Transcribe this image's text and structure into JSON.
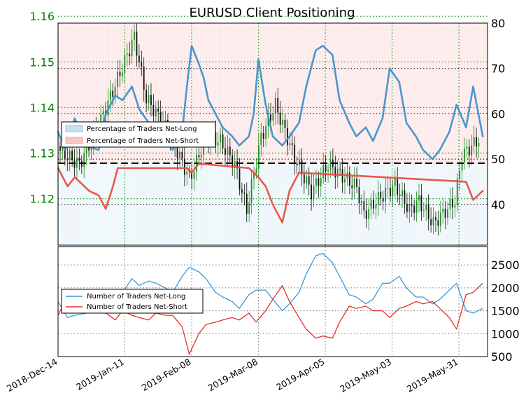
{
  "chart_data": [
    {
      "type": "line",
      "title": "EURUSD Client Positioning",
      "price_axis": {
        "ticks": [
          1.12,
          1.13,
          1.14,
          1.15,
          1.16
        ],
        "range": [
          1.1098,
          1.1585
        ]
      },
      "pct_axis": {
        "ticks": [
          40,
          50,
          60,
          70,
          80
        ],
        "range": [
          31,
          80
        ]
      },
      "reference_line": 50,
      "grid": "dotted",
      "legend": {
        "placement": "left",
        "entries": [
          "Percentage of Traders Net-Long",
          "Percentage of Traders Net-Short"
        ]
      },
      "series": [
        {
          "name": "Percentage of Traders Net-Long",
          "color": "#3a8fc8",
          "x": [
            "2018-12-14",
            "2018-12-17",
            "2018-12-21",
            "2018-12-26",
            "2018-12-31",
            "2019-01-03",
            "2019-01-07",
            "2019-01-10",
            "2019-01-14",
            "2019-01-17",
            "2019-01-21",
            "2019-01-24",
            "2019-01-28",
            "2019-01-31",
            "2019-02-04",
            "2019-02-06",
            "2019-02-08",
            "2019-02-11",
            "2019-02-13",
            "2019-02-15",
            "2019-02-18",
            "2019-02-21",
            "2019-02-25",
            "2019-02-28",
            "2019-03-04",
            "2019-03-06",
            "2019-03-08",
            "2019-03-11",
            "2019-03-14",
            "2019-03-18",
            "2019-03-21",
            "2019-03-25",
            "2019-03-28",
            "2019-04-01",
            "2019-04-04",
            "2019-04-08",
            "2019-04-11",
            "2019-04-15",
            "2019-04-18",
            "2019-04-22",
            "2019-04-25",
            "2019-04-29",
            "2019-05-02",
            "2019-05-06",
            "2019-05-09",
            "2019-05-13",
            "2019-05-16",
            "2019-05-20",
            "2019-05-23",
            "2019-05-27",
            "2019-05-30",
            "2019-06-03",
            "2019-06-06",
            "2019-06-10"
          ],
          "values": [
            56,
            52,
            59,
            53,
            52,
            60,
            64,
            63,
            66,
            61,
            58,
            57,
            54,
            52,
            56,
            66,
            75,
            71,
            68,
            63,
            60,
            57,
            55,
            53,
            55,
            60,
            72,
            62,
            55,
            53,
            55,
            58,
            66,
            74,
            75,
            73,
            63,
            58,
            55,
            57,
            54,
            59,
            70,
            67,
            58,
            55,
            52,
            50,
            52,
            56,
            62,
            57,
            66,
            55
          ]
        },
        {
          "name": "Percentage of Traders Net-Short",
          "color": "#e74c3c",
          "x": [
            "2018-12-14",
            "2018-12-18",
            "2018-12-21",
            "2018-12-27",
            "2018-12-31",
            "2019-01-03",
            "2019-01-06",
            "2019-01-08",
            "2019-02-06",
            "2019-02-08",
            "2019-02-11",
            "2019-03-04",
            "2019-03-08",
            "2019-03-11",
            "2019-03-14",
            "2019-03-18",
            "2019-03-21",
            "2019-03-25",
            "2019-06-03",
            "2019-06-06",
            "2019-06-10"
          ],
          "values": [
            48,
            44,
            46,
            43,
            42,
            39,
            44,
            48,
            48,
            47,
            49,
            48,
            46,
            44,
            40,
            36,
            43,
            47,
            45,
            41,
            43
          ]
        }
      ]
    },
    {
      "type": "line",
      "count_axis": {
        "ticks": [
          500,
          1000,
          1500,
          2000,
          2500
        ],
        "range": [
          500,
          2900
        ]
      },
      "x_ticks": [
        "2018-Dec-14",
        "2019-Jan-11",
        "2019-Feb-08",
        "2019-Mar-08",
        "2019-Apr-05",
        "2019-May-03",
        "2019-May-31"
      ],
      "grid": "dotted",
      "legend": {
        "placement": "left",
        "entries": [
          "Number of Traders Net-Long",
          "Number of Traders Net-Short"
        ]
      },
      "series": [
        {
          "name": "Number of Traders Net-Long",
          "color": "#3a9ad9",
          "x": [
            "2018-12-14",
            "2018-12-18",
            "2018-12-21",
            "2018-12-26",
            "2018-12-31",
            "2019-01-03",
            "2019-01-07",
            "2019-01-10",
            "2019-01-14",
            "2019-01-17",
            "2019-01-21",
            "2019-01-24",
            "2019-01-28",
            "2019-01-31",
            "2019-02-04",
            "2019-02-07",
            "2019-02-11",
            "2019-02-14",
            "2019-02-18",
            "2019-02-21",
            "2019-02-25",
            "2019-02-28",
            "2019-03-04",
            "2019-03-07",
            "2019-03-11",
            "2019-03-14",
            "2019-03-18",
            "2019-03-21",
            "2019-03-25",
            "2019-03-28",
            "2019-04-01",
            "2019-04-04",
            "2019-04-08",
            "2019-04-11",
            "2019-04-15",
            "2019-04-18",
            "2019-04-22",
            "2019-04-25",
            "2019-04-29",
            "2019-05-02",
            "2019-05-06",
            "2019-05-09",
            "2019-05-13",
            "2019-05-16",
            "2019-05-20",
            "2019-05-23",
            "2019-05-27",
            "2019-05-30",
            "2019-06-03",
            "2019-06-06",
            "2019-06-10"
          ],
          "values": [
            1700,
            1350,
            1400,
            1450,
            1500,
            1600,
            1700,
            1900,
            2200,
            2050,
            2150,
            2100,
            2000,
            1900,
            2250,
            2450,
            2350,
            2200,
            1900,
            1800,
            1700,
            1550,
            1850,
            1950,
            1950,
            1750,
            1500,
            1650,
            1900,
            2300,
            2700,
            2750,
            2550,
            2250,
            1850,
            1800,
            1650,
            1750,
            2100,
            2100,
            2250,
            2000,
            1800,
            1800,
            1650,
            1750,
            1950,
            2100,
            1500,
            1450,
            1550
          ]
        },
        {
          "name": "Number of Traders Net-Short",
          "color": "#e0312b",
          "x": [
            "2018-12-14",
            "2018-12-18",
            "2018-12-21",
            "2018-12-26",
            "2018-12-31",
            "2019-01-03",
            "2019-01-07",
            "2019-01-10",
            "2019-01-14",
            "2019-01-17",
            "2019-01-21",
            "2019-01-24",
            "2019-01-28",
            "2019-01-31",
            "2019-02-04",
            "2019-02-07",
            "2019-02-11",
            "2019-02-14",
            "2019-02-18",
            "2019-02-21",
            "2019-02-25",
            "2019-02-28",
            "2019-03-04",
            "2019-03-07",
            "2019-03-11",
            "2019-03-14",
            "2019-03-18",
            "2019-03-21",
            "2019-03-25",
            "2019-03-28",
            "2019-04-01",
            "2019-04-04",
            "2019-04-08",
            "2019-04-11",
            "2019-04-15",
            "2019-04-18",
            "2019-04-22",
            "2019-04-25",
            "2019-04-29",
            "2019-05-02",
            "2019-05-06",
            "2019-05-09",
            "2019-05-13",
            "2019-05-16",
            "2019-05-20",
            "2019-05-23",
            "2019-05-27",
            "2019-05-30",
            "2019-06-03",
            "2019-06-06",
            "2019-06-10"
          ],
          "values": [
            1400,
            1800,
            1750,
            1600,
            1550,
            1450,
            1300,
            1500,
            1400,
            1350,
            1300,
            1450,
            1400,
            1400,
            1150,
            550,
            1000,
            1200,
            1250,
            1300,
            1350,
            1300,
            1450,
            1250,
            1500,
            1750,
            2050,
            1700,
            1350,
            1100,
            900,
            950,
            900,
            1250,
            1600,
            1550,
            1600,
            1500,
            1500,
            1350,
            1550,
            1600,
            1700,
            1650,
            1700,
            1550,
            1350,
            1100,
            1850,
            1900,
            2100
          ]
        }
      ]
    }
  ]
}
